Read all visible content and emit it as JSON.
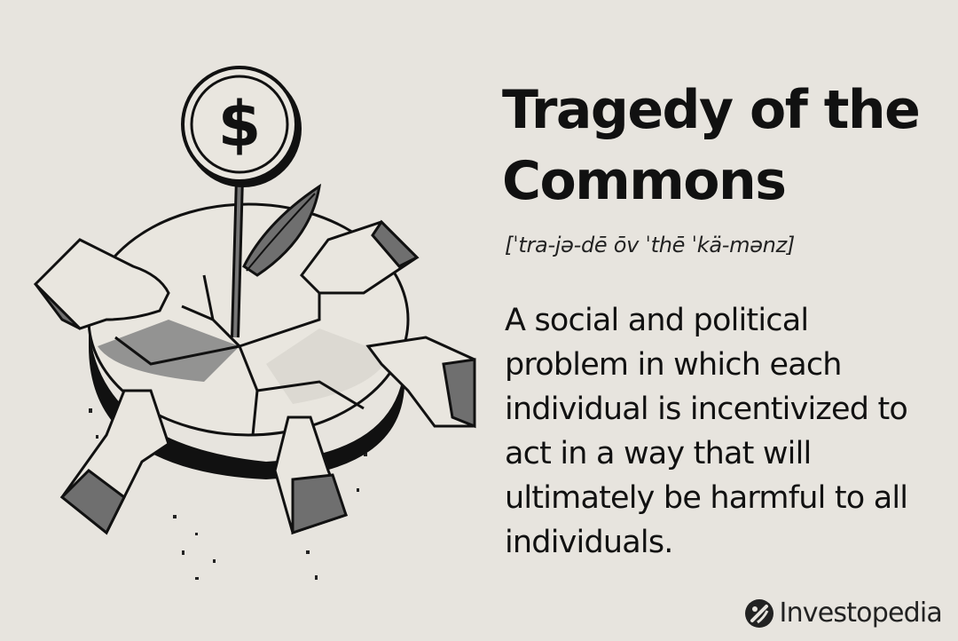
{
  "header": {
    "title": "Tragedy of the Commons",
    "pronunciation": "[ˈtra-jə-dē ōv ˈthē ˈkä-mənz]"
  },
  "definition": "A social and political problem in which each individual is incentivized to act in a way that will ultimately be harmful to all individuals.",
  "brand": {
    "name": "Investopedia",
    "logo_icon": "investopedia-logo-icon"
  },
  "illustration": {
    "coin_symbol": "$",
    "icons": [
      "dollar-coin-icon",
      "sprout-icon",
      "cracked-pie-icon",
      "hand-icon"
    ]
  },
  "colors": {
    "background": "#e7e4de",
    "ink": "#111111",
    "shade": "#6f6f6f"
  }
}
